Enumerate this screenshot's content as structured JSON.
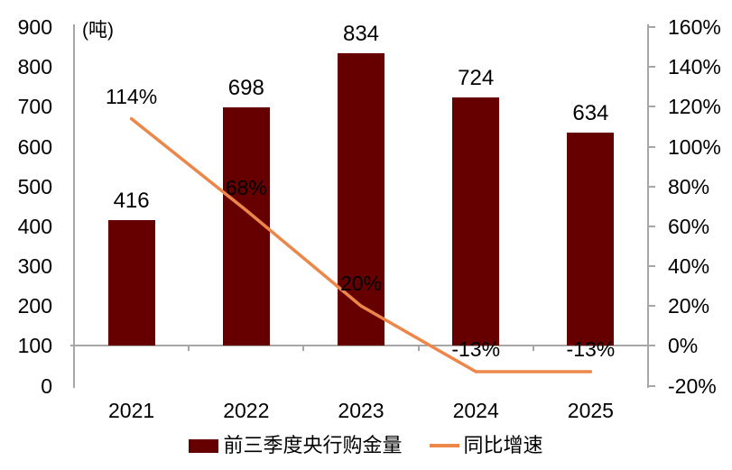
{
  "chart_data": {
    "type": "bar",
    "title": "",
    "categories": [
      "2021",
      "2022",
      "2023",
      "2024",
      "2025"
    ],
    "series": [
      {
        "name": "前三季度央行购金量",
        "type": "bar",
        "axis": "left",
        "values": [
          416,
          698,
          834,
          724,
          634
        ],
        "data_labels": [
          "416",
          "698",
          "834",
          "724",
          "634"
        ],
        "color": "#660000"
      },
      {
        "name": "同比增速",
        "type": "line",
        "axis": "right",
        "values": [
          114,
          68,
          20,
          -13,
          -13
        ],
        "data_labels": [
          "114%",
          "68%",
          "20%",
          "-13%",
          "-13%"
        ],
        "color": "#ED8649"
      }
    ],
    "left_axis": {
      "unit_label": "(吨)",
      "min": 0,
      "max": 900,
      "step": 100,
      "tick_labels": [
        "900",
        "800",
        "700",
        "600",
        "500",
        "400",
        "300",
        "200",
        "100",
        "0"
      ]
    },
    "right_axis": {
      "min": -20,
      "max": 160,
      "step": 20,
      "tick_labels": [
        "160%",
        "140%",
        "120%",
        "100%",
        "80%",
        "60%",
        "40%",
        "20%",
        "0%",
        "-20%"
      ]
    },
    "category_axis_at_left_value": 100,
    "grid": false,
    "legend_position": "bottom",
    "axis_color": "#A6A6A6",
    "text_color": "#000000"
  }
}
